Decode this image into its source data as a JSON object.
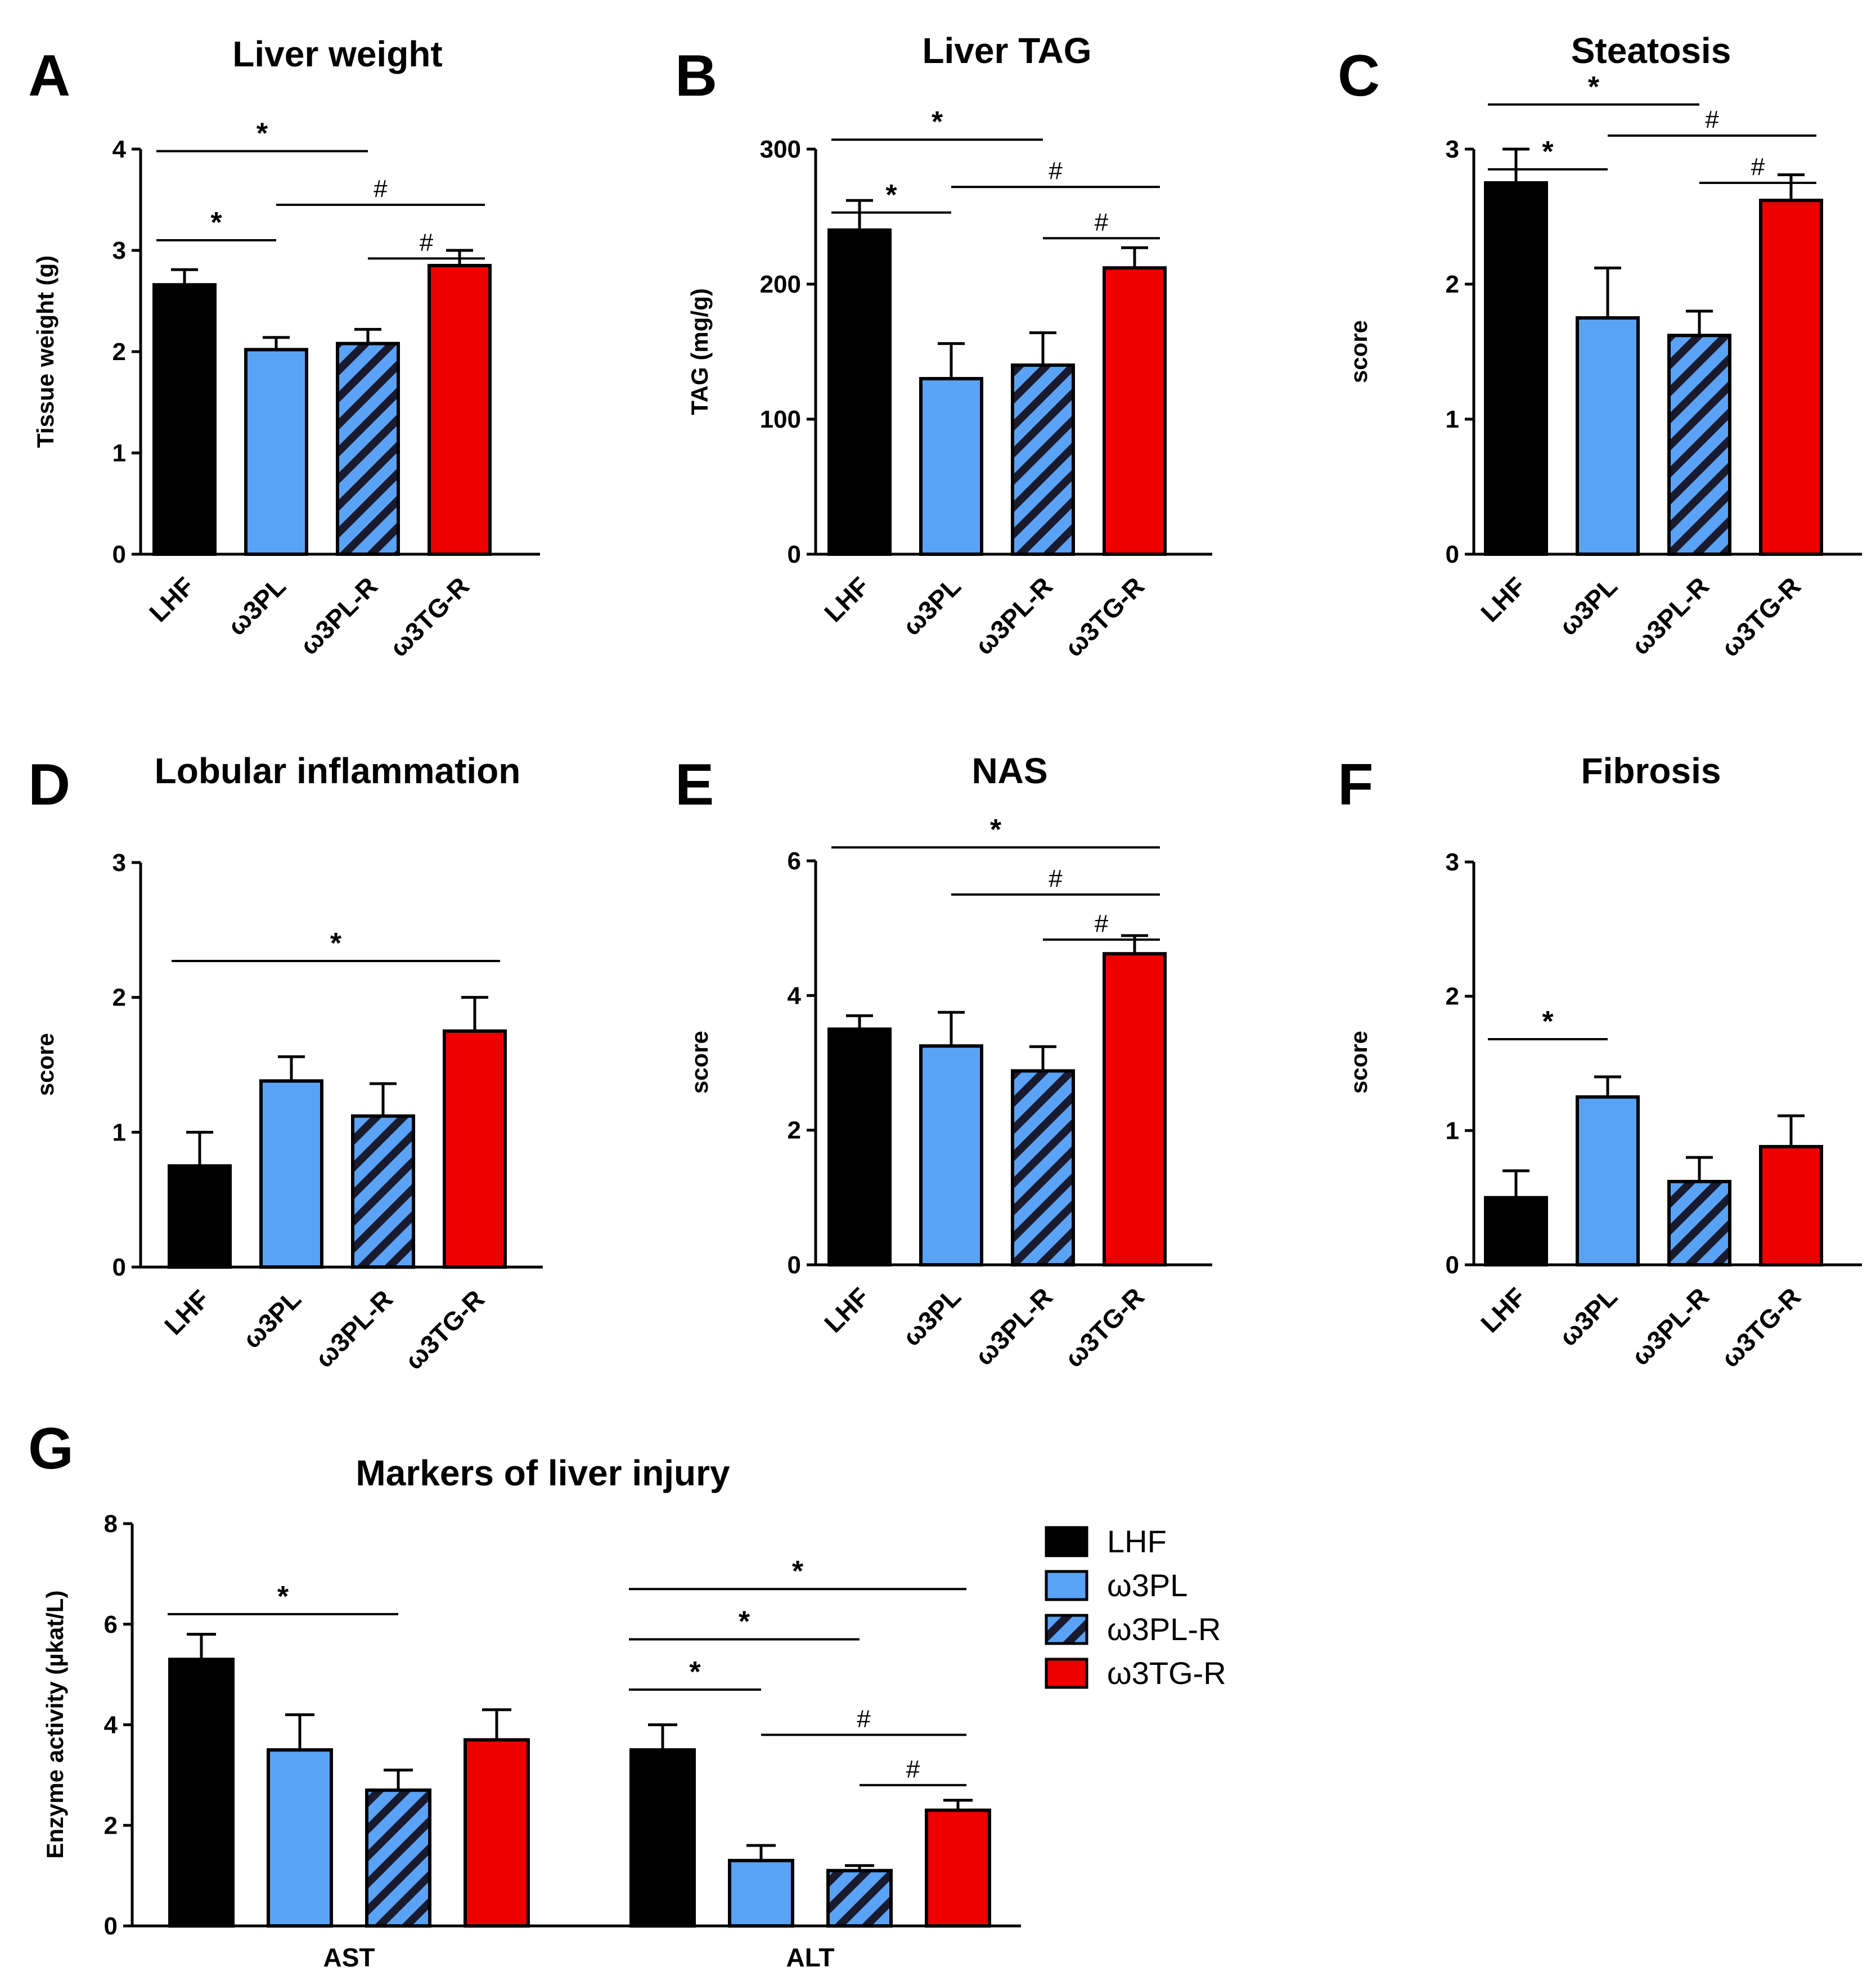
{
  "colors": {
    "LHF": "#000000",
    "w3PL": "#5aa2f5",
    "w3PL_R_base": "#5aa2f5",
    "w3PL_R_hatch": "#1a1a2e",
    "w3TG_R": "#ee0000"
  },
  "chart_data": [
    {
      "panel": "A",
      "type": "bar",
      "title": "Liver weight",
      "ylabel": "Tissue weight (g)",
      "categories": [
        "LHF",
        "ω3PL",
        "ω3PL-R",
        "ω3TG-R"
      ],
      "values": [
        2.66,
        2.02,
        2.08,
        2.85
      ],
      "errors": [
        0.15,
        0.12,
        0.14,
        0.15
      ],
      "ylim": [
        0,
        4
      ],
      "yticks": [
        "0",
        "1",
        "2",
        "3",
        "4"
      ],
      "significance": [
        {
          "from": 0,
          "to": 2,
          "symbol": "*",
          "y": 3.98
        },
        {
          "from": 0,
          "to": 1,
          "symbol": "*",
          "y": 3.1
        },
        {
          "from": 1,
          "to": 3,
          "symbol": "#",
          "y": 3.45
        },
        {
          "from": 2,
          "to": 3,
          "symbol": "#",
          "y": 2.92
        }
      ]
    },
    {
      "panel": "B",
      "type": "bar",
      "title": "Liver TAG",
      "ylabel": "TAG (mg/g)",
      "categories": [
        "LHF",
        "ω3PL",
        "ω3PL-R",
        "ω3TG-R"
      ],
      "values": [
        240,
        130,
        140,
        212
      ],
      "errors": [
        22,
        26,
        24,
        15
      ],
      "ylim": [
        0,
        300
      ],
      "yticks": [
        "0",
        "100",
        "200",
        "300"
      ],
      "significance": [
        {
          "from": 0,
          "to": 2,
          "symbol": "*",
          "y": 307
        },
        {
          "from": 0,
          "to": 1,
          "symbol": "*",
          "y": 253
        },
        {
          "from": 1,
          "to": 3,
          "symbol": "#",
          "y": 272
        },
        {
          "from": 2,
          "to": 3,
          "symbol": "#",
          "y": 234
        }
      ]
    },
    {
      "panel": "C",
      "type": "bar",
      "title": "Steatosis",
      "ylabel": "score",
      "categories": [
        "LHF",
        "ω3PL",
        "ω3PL-R",
        "ω3TG-R"
      ],
      "values": [
        2.75,
        1.75,
        1.62,
        2.62
      ],
      "errors": [
        0.25,
        0.37,
        0.18,
        0.19
      ],
      "ylim": [
        0,
        3
      ],
      "yticks": [
        "0",
        "1",
        "2",
        "3"
      ],
      "significance": [
        {
          "from": 0,
          "to": 2,
          "symbol": "*",
          "y": 3.33
        },
        {
          "from": 0,
          "to": 1,
          "symbol": "*",
          "y": 2.85
        },
        {
          "from": 1,
          "to": 3,
          "symbol": "#",
          "y": 3.1
        },
        {
          "from": 2,
          "to": 3,
          "symbol": "#",
          "y": 2.75
        }
      ]
    },
    {
      "panel": "D",
      "type": "bar",
      "title": "Lobular inflammation",
      "ylabel": "score",
      "categories": [
        "LHF",
        "ω3PL",
        "ω3PL-R",
        "ω3TG-R"
      ],
      "values": [
        0.75,
        1.38,
        1.12,
        1.75
      ],
      "errors": [
        0.25,
        0.18,
        0.24,
        0.25
      ],
      "ylim": [
        0,
        3
      ],
      "yticks": [
        "0",
        "1",
        "2",
        "3"
      ],
      "significance": [
        {
          "from": 0,
          "to": 3,
          "symbol": "*",
          "y": 2.27
        }
      ]
    },
    {
      "panel": "E",
      "type": "bar",
      "title": "NAS",
      "ylabel": "score",
      "categories": [
        "LHF",
        "ω3PL",
        "ω3PL-R",
        "ω3TG-R"
      ],
      "values": [
        3.5,
        3.25,
        2.88,
        4.62
      ],
      "errors": [
        0.2,
        0.5,
        0.36,
        0.27
      ],
      "ylim": [
        0,
        6
      ],
      "yticks": [
        "0",
        "2",
        "4",
        "6"
      ],
      "significance": [
        {
          "from": 0,
          "to": 3,
          "symbol": "*",
          "y": 6.2
        },
        {
          "from": 1,
          "to": 3,
          "symbol": "#",
          "y": 5.5
        },
        {
          "from": 2,
          "to": 3,
          "symbol": "#",
          "y": 4.83
        }
      ]
    },
    {
      "panel": "F",
      "type": "bar",
      "title": "Fibrosis",
      "ylabel": "score",
      "categories": [
        "LHF",
        "ω3PL",
        "ω3PL-R",
        "ω3TG-R"
      ],
      "values": [
        0.5,
        1.25,
        0.62,
        0.88
      ],
      "errors": [
        0.2,
        0.15,
        0.18,
        0.23
      ],
      "ylim": [
        0,
        3
      ],
      "yticks": [
        "0",
        "1",
        "2",
        "3"
      ],
      "significance": [
        {
          "from": 0,
          "to": 1,
          "symbol": "*",
          "y": 1.68
        }
      ]
    },
    {
      "panel": "G",
      "type": "bar",
      "title": "Markers of liver injury",
      "ylabel": "Enzyme activity (µkat/L)",
      "groups": [
        "AST",
        "ALT"
      ],
      "series": [
        {
          "name": "LHF",
          "values": [
            5.3,
            3.5
          ],
          "errors": [
            0.5,
            0.5
          ]
        },
        {
          "name": "ω3PL",
          "values": [
            3.5,
            1.3
          ],
          "errors": [
            0.7,
            0.3
          ]
        },
        {
          "name": "ω3PL-R",
          "values": [
            2.7,
            1.1
          ],
          "errors": [
            0.4,
            0.1
          ]
        },
        {
          "name": "ω3TG-R",
          "values": [
            3.7,
            2.3
          ],
          "errors": [
            0.6,
            0.2
          ]
        }
      ],
      "ylim": [
        0,
        8
      ],
      "yticks": [
        "0",
        "2",
        "4",
        "6",
        "8"
      ],
      "legend": [
        "LHF",
        "ω3PL",
        "ω3PL-R",
        "ω3TG-R"
      ],
      "significance": [
        {
          "group": 0,
          "from": 0,
          "to": 2,
          "symbol": "*",
          "y": 6.2
        },
        {
          "group": 1,
          "from": 0,
          "to": 3,
          "symbol": "*",
          "y": 6.7
        },
        {
          "group": 1,
          "from": 0,
          "to": 2,
          "symbol": "*",
          "y": 5.7
        },
        {
          "group": 1,
          "from": 0,
          "to": 1,
          "symbol": "*",
          "y": 4.7
        },
        {
          "group": 1,
          "from": 1,
          "to": 3,
          "symbol": "#",
          "y": 3.8
        },
        {
          "group": 1,
          "from": 2,
          "to": 3,
          "symbol": "#",
          "y": 2.8
        }
      ]
    }
  ]
}
